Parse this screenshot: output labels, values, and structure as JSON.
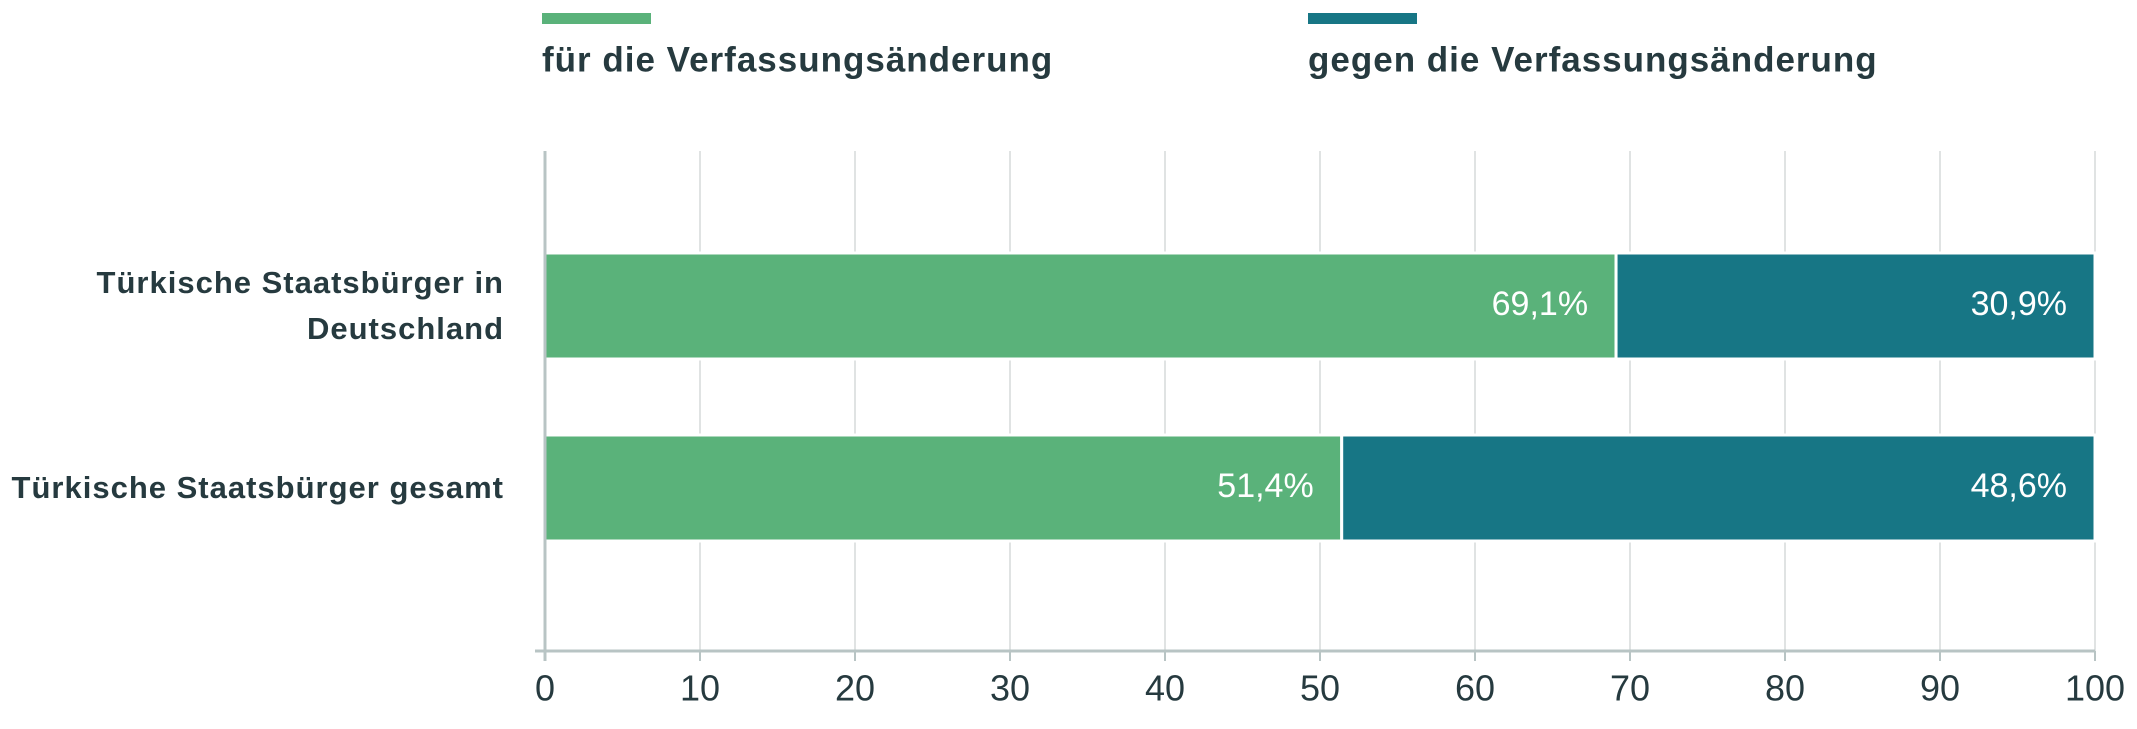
{
  "chart_data": {
    "type": "stacked_bar_horizontal",
    "categories": [
      "Türkische Staatsbürger in Deutschland",
      "Türkische Staatsbürger gesamt"
    ],
    "series": [
      {
        "name": "für die Verfassungsänderung",
        "color": "#5ab27a",
        "values": [
          69.1,
          51.4
        ],
        "value_labels": [
          "69,1%",
          "51,4%"
        ]
      },
      {
        "name": "gegen die Verfassungsänderung",
        "color": "#177685",
        "values": [
          30.9,
          48.6
        ],
        "value_labels": [
          "30,9%",
          "48,6%"
        ]
      }
    ],
    "xlim": [
      0,
      100
    ],
    "xticks": [
      0,
      10,
      20,
      30,
      40,
      50,
      60,
      70,
      80,
      90,
      100
    ],
    "grid": true,
    "legend": "top"
  }
}
